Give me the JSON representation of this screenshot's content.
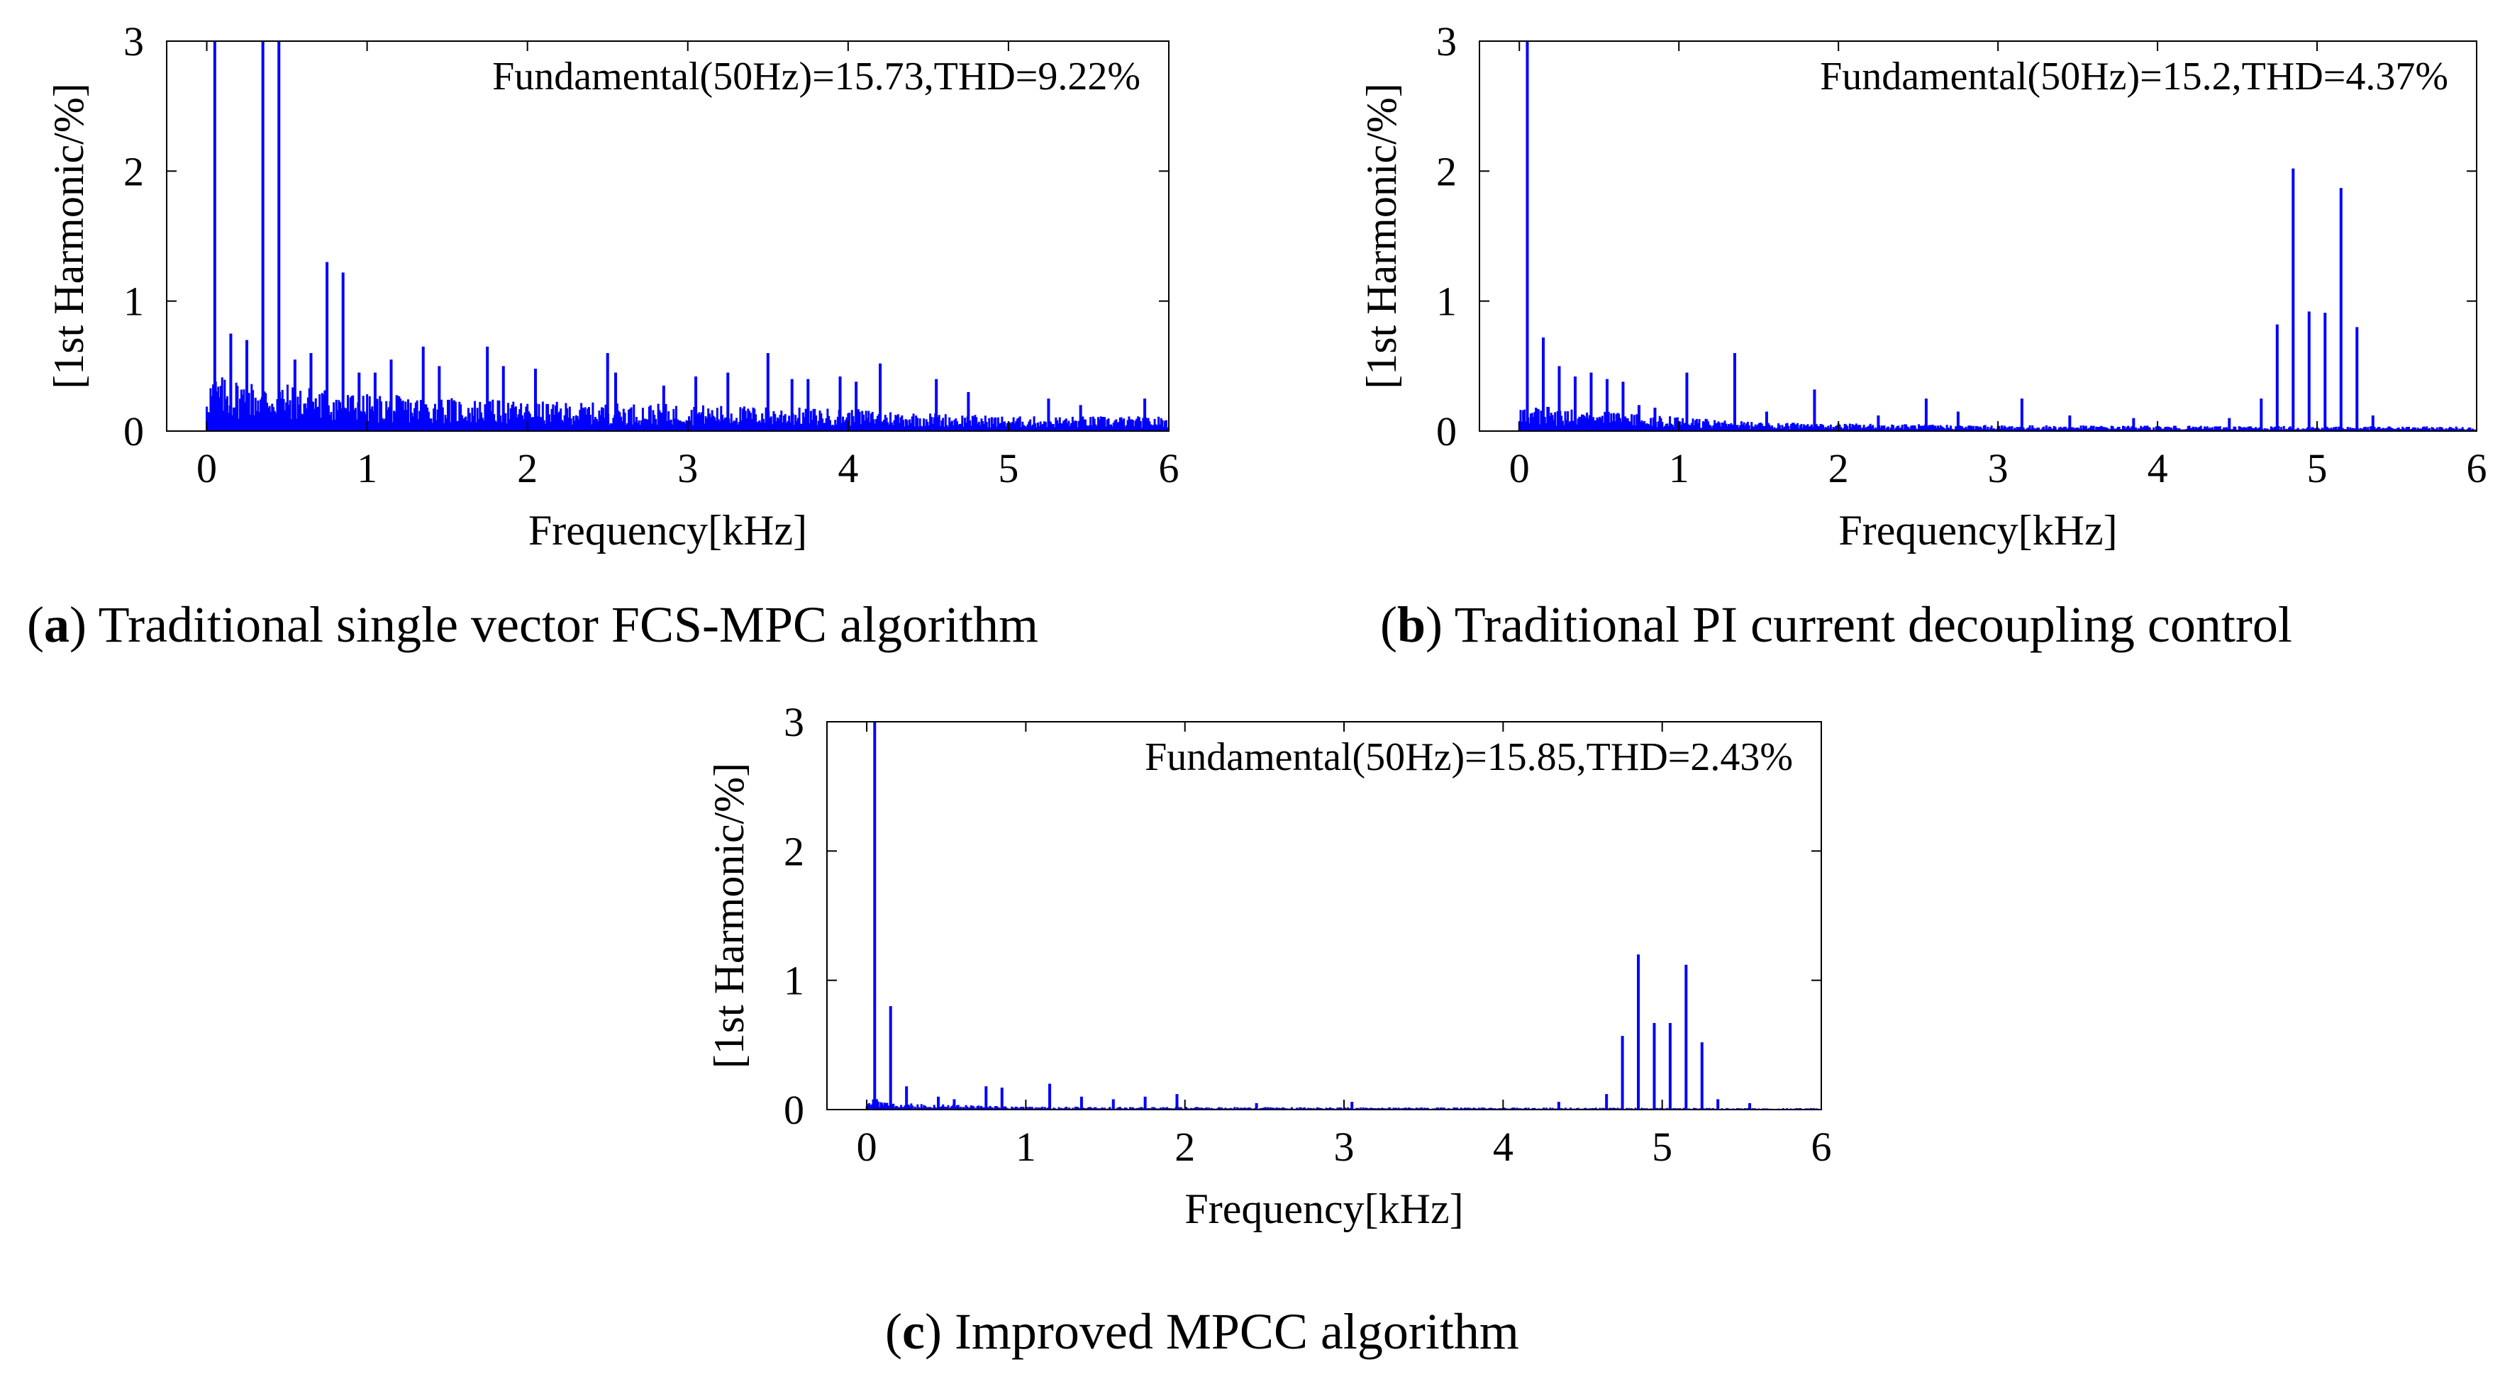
{
  "chart_data": [
    {
      "type": "bar",
      "id": "a",
      "caption_letter": "a",
      "caption_text": "Traditional single vector FCS-MPC algorithm",
      "annotation": "Fundamental(50Hz)=15.73,THD=9.22%",
      "xlabel": "Frequency[kHz]",
      "ylabel": "[1st  Harmonic/%]",
      "xlim": [
        -0.25,
        6
      ],
      "ylim": [
        0,
        3
      ],
      "xticks": [
        0,
        1,
        2,
        3,
        4,
        5,
        6
      ],
      "yticks": [
        0,
        1,
        2,
        3
      ],
      "grid": false,
      "series": [
        {
          "x": [
            0.05,
            0.35,
            0.45,
            0.75,
            0.85,
            0.15,
            0.25,
            1.35,
            1.75,
            2.5,
            3.5,
            4.2,
            1.15,
            1.45,
            1.85,
            2.05,
            2.55,
            3.05,
            3.25,
            3.65,
            3.95,
            4.05,
            4.55,
            5.25,
            5.85,
            0.65,
            1.05,
            0.55,
            0.95,
            2.85,
            3.75,
            4.75,
            5.45
          ],
          "values": [
            3,
            3,
            3,
            1.3,
            1.22,
            0.75,
            0.7,
            0.65,
            0.65,
            0.6,
            0.6,
            0.52,
            0.55,
            0.5,
            0.5,
            0.48,
            0.45,
            0.42,
            0.45,
            0.4,
            0.42,
            0.38,
            0.4,
            0.25,
            0.25,
            0.6,
            0.45,
            0.55,
            0.45,
            0.35,
            0.4,
            0.3,
            0.2
          ]
        }
      ],
      "noise_profile": [
        [
          0,
          0.38
        ],
        [
          0.5,
          0.32
        ],
        [
          1,
          0.25
        ],
        [
          2,
          0.2
        ],
        [
          3,
          0.18
        ],
        [
          4,
          0.15
        ],
        [
          5,
          0.1
        ],
        [
          6,
          0.1
        ]
      ]
    },
    {
      "type": "bar",
      "id": "b",
      "caption_letter": "b",
      "caption_text": "Traditional PI current decoupling control",
      "annotation": "Fundamental(50Hz)=15.2,THD=4.37%",
      "xlabel": "Frequency[kHz]",
      "ylabel": "[1st  Harmonic/%]",
      "xlim": [
        -0.25,
        6
      ],
      "ylim": [
        0,
        3
      ],
      "xticks": [
        0,
        1,
        2,
        3,
        4,
        5,
        6
      ],
      "yticks": [
        0,
        1,
        2,
        3
      ],
      "grid": false,
      "series": [
        {
          "x": [
            0.05,
            0.15,
            0.25,
            0.35,
            0.45,
            0.55,
            0.65,
            1.05,
            1.35,
            1.85,
            2.55,
            3.15,
            4.85,
            5.15,
            4.95,
            5.05,
            4.75,
            5.25,
            4.65,
            5.35,
            0.75,
            0.85,
            1.55,
            2.25,
            2.75,
            3.45,
            3.85,
            4.45
          ],
          "values": [
            3,
            0.72,
            0.5,
            0.42,
            0.45,
            0.4,
            0.38,
            0.45,
            0.6,
            0.32,
            0.25,
            0.25,
            2.02,
            1.87,
            0.92,
            0.91,
            0.82,
            0.8,
            0.25,
            0.12,
            0.2,
            0.18,
            0.15,
            0.12,
            0.15,
            0.12,
            0.1,
            0.1
          ]
        }
      ],
      "noise_profile": [
        [
          0,
          0.18
        ],
        [
          0.7,
          0.12
        ],
        [
          1.5,
          0.06
        ],
        [
          3,
          0.04
        ],
        [
          6,
          0.03
        ]
      ]
    },
    {
      "type": "bar",
      "id": "c",
      "caption_letter": "c",
      "caption_text": "Improved MPCC algorithm",
      "annotation": "Fundamental(50Hz)=15.85,THD=2.43%",
      "xlabel": "Frequency[kHz]",
      "ylabel": "[1st  Harmonic/%]",
      "xlim": [
        -0.25,
        6
      ],
      "ylim": [
        0,
        3
      ],
      "xticks": [
        0,
        1,
        2,
        3,
        4,
        5,
        6
      ],
      "yticks": [
        0,
        1,
        2,
        3
      ],
      "grid": false,
      "series": [
        {
          "x": [
            0.05,
            0.15,
            0.25,
            0.75,
            0.85,
            1.15,
            1.35,
            1.95,
            4.85,
            5.15,
            4.95,
            5.05,
            4.75,
            5.25,
            4.65,
            5.35,
            0.45,
            0.55,
            1.55,
            1.75,
            2.45,
            3.05,
            4.35,
            5.55
          ],
          "values": [
            3,
            0.8,
            0.18,
            0.18,
            0.17,
            0.2,
            0.1,
            0.12,
            1.2,
            1.12,
            0.67,
            0.67,
            0.57,
            0.52,
            0.12,
            0.08,
            0.1,
            0.08,
            0.08,
            0.1,
            0.05,
            0.06,
            0.06,
            0.05
          ]
        }
      ],
      "noise_profile": [
        [
          0,
          0.08
        ],
        [
          0.3,
          0.04
        ],
        [
          1,
          0.02
        ],
        [
          6,
          0.01
        ]
      ]
    }
  ]
}
